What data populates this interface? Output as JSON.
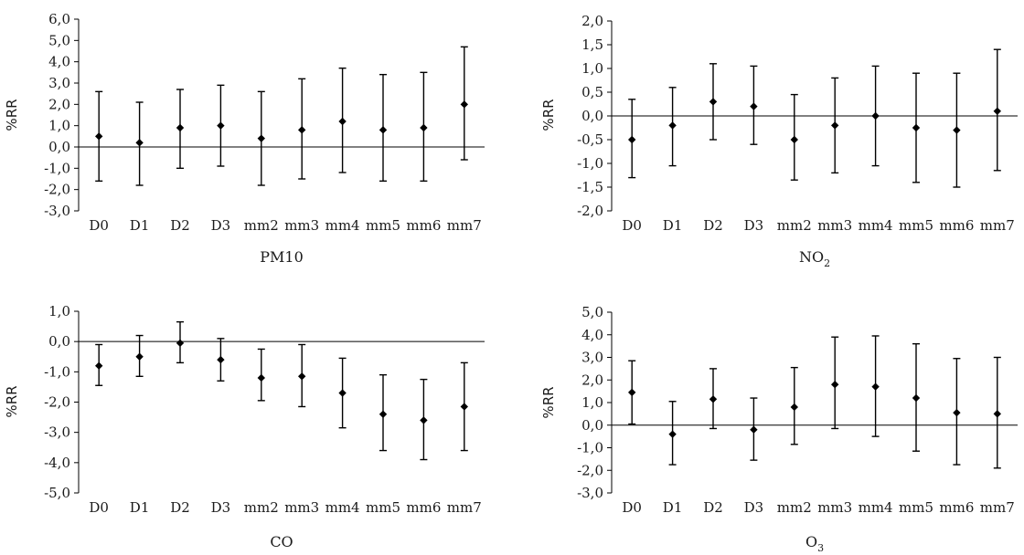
{
  "chart_data": [
    {
      "type": "scatter",
      "name": "PM10",
      "caption": "PM10",
      "caption_sub": "",
      "ylabel": "%RR",
      "ylim": [
        -3.0,
        6.0
      ],
      "ytick_step": 1.0,
      "yticks": [
        "-3,0",
        "-2,0",
        "-1,0",
        "0,0",
        "1,0",
        "2,0",
        "3,0",
        "4,0",
        "5,0",
        "6,0"
      ],
      "categories": [
        "D0",
        "D1",
        "D2",
        "D3",
        "mm2",
        "mm3",
        "mm4",
        "mm5",
        "mm6",
        "mm7"
      ],
      "series": [
        {
          "estimate": [
            0.5,
            0.2,
            0.9,
            1.0,
            0.4,
            0.8,
            1.2,
            0.8,
            0.9,
            2.0
          ],
          "lower": [
            -1.6,
            -1.8,
            -1.0,
            -0.9,
            -1.8,
            -1.5,
            -1.2,
            -1.6,
            -1.6,
            -0.6
          ],
          "upper": [
            2.6,
            2.1,
            2.7,
            2.9,
            2.6,
            3.2,
            3.7,
            3.4,
            3.5,
            4.7
          ]
        }
      ]
    },
    {
      "type": "scatter",
      "name": "NO2",
      "caption": "NO",
      "caption_sub": "2",
      "ylabel": "%RR",
      "ylim": [
        -2.0,
        2.0
      ],
      "ytick_step": 0.5,
      "yticks": [
        "-2,0",
        "-1,5",
        "-1,0",
        "-0,5",
        "0,0",
        "0,5",
        "1,0",
        "1,5",
        "2,0"
      ],
      "categories": [
        "D0",
        "D1",
        "D2",
        "D3",
        "mm2",
        "mm3",
        "mm4",
        "mm5",
        "mm6",
        "mm7"
      ],
      "series": [
        {
          "estimate": [
            -0.5,
            -0.2,
            0.3,
            0.2,
            -0.5,
            -0.2,
            0.0,
            -0.25,
            -0.3,
            0.1
          ],
          "lower": [
            -1.3,
            -1.05,
            -0.5,
            -0.6,
            -1.35,
            -1.2,
            -1.05,
            -1.4,
            -1.5,
            -1.15
          ],
          "upper": [
            0.35,
            0.6,
            1.1,
            1.05,
            0.45,
            0.8,
            1.05,
            0.9,
            0.9,
            1.4
          ]
        }
      ]
    },
    {
      "type": "scatter",
      "name": "CO",
      "caption": "CO",
      "caption_sub": "",
      "ylabel": "%RR",
      "ylim": [
        -5.0,
        1.0
      ],
      "ytick_step": 1.0,
      "yticks": [
        "-5,0",
        "-4,0",
        "-3,0",
        "-2,0",
        "-1,0",
        "0,0",
        "1,0"
      ],
      "categories": [
        "D0",
        "D1",
        "D2",
        "D3",
        "mm2",
        "mm3",
        "mm4",
        "mm5",
        "mm6",
        "mm7"
      ],
      "series": [
        {
          "estimate": [
            -0.8,
            -0.5,
            -0.05,
            -0.6,
            -1.2,
            -1.15,
            -1.7,
            -2.4,
            -2.6,
            -2.15
          ],
          "lower": [
            -1.45,
            -1.15,
            -0.7,
            -1.3,
            -1.95,
            -2.15,
            -2.85,
            -3.6,
            -3.9,
            -3.6
          ],
          "upper": [
            -0.1,
            0.2,
            0.65,
            0.1,
            -0.25,
            -0.1,
            -0.55,
            -1.1,
            -1.25,
            -0.7
          ]
        }
      ]
    },
    {
      "type": "scatter",
      "name": "O3",
      "caption": "O",
      "caption_sub": "3",
      "ylabel": "%RR",
      "ylim": [
        -3.0,
        5.0
      ],
      "ytick_step": 1.0,
      "yticks": [
        "-3,0",
        "-2,0",
        "-1,0",
        "0,0",
        "1,0",
        "2,0",
        "3,0",
        "4,0",
        "5,0"
      ],
      "categories": [
        "D0",
        "D1",
        "D2",
        "D3",
        "mm2",
        "mm3",
        "mm4",
        "mm5",
        "mm6",
        "mm7"
      ],
      "series": [
        {
          "estimate": [
            1.45,
            -0.4,
            1.15,
            -0.2,
            0.8,
            1.8,
            1.7,
            1.2,
            0.55,
            0.5
          ],
          "lower": [
            0.05,
            -1.75,
            -0.15,
            -1.55,
            -0.85,
            -0.15,
            -0.5,
            -1.15,
            -1.75,
            -1.9
          ],
          "upper": [
            2.85,
            1.05,
            2.5,
            1.2,
            2.55,
            3.9,
            3.95,
            3.6,
            2.95,
            3.0
          ]
        }
      ]
    }
  ]
}
